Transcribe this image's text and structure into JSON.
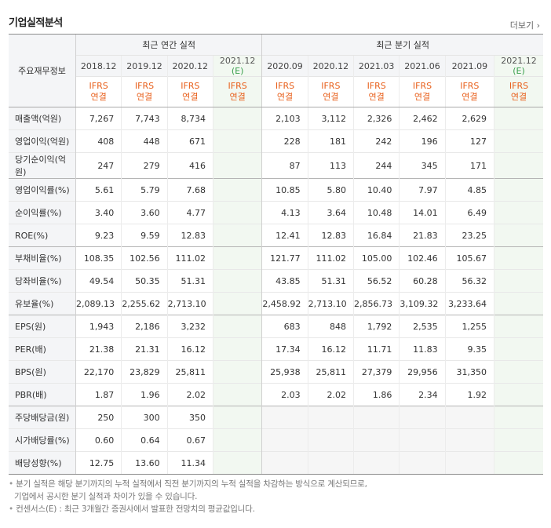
{
  "section_title": "기업실적분석",
  "more_link": "더보기",
  "more_arrow": "›",
  "table": {
    "corner_label": "주요재무정보",
    "annual_group": "최근 연간 실적",
    "quarter_group": "최근 분기 실적",
    "annual_periods": [
      "2018.12",
      "2019.12",
      "2020.12",
      "2021.12"
    ],
    "annual_est_mark": "(E)",
    "quarter_periods": [
      "2020.09",
      "2020.12",
      "2021.03",
      "2021.06",
      "2021.09",
      "2021.12"
    ],
    "quarter_est_mark": "(E)",
    "standard_line1": "IFRS",
    "standard_line2": "연결",
    "rows": [
      {
        "label": "매출액(억원)",
        "annual": [
          "7,267",
          "7,743",
          "8,734",
          ""
        ],
        "quarter": [
          "2,103",
          "3,112",
          "2,326",
          "2,462",
          "2,629",
          ""
        ]
      },
      {
        "label": "영업이익(억원)",
        "annual": [
          "408",
          "448",
          "671",
          ""
        ],
        "quarter": [
          "228",
          "181",
          "242",
          "196",
          "127",
          ""
        ]
      },
      {
        "label": "당기순이익(억원)",
        "annual": [
          "247",
          "279",
          "416",
          ""
        ],
        "quarter": [
          "87",
          "113",
          "244",
          "345",
          "171",
          ""
        ]
      },
      {
        "label": "영업이익률(%)",
        "annual": [
          "5.61",
          "5.79",
          "7.68",
          ""
        ],
        "quarter": [
          "10.85",
          "5.80",
          "10.40",
          "7.97",
          "4.85",
          ""
        ]
      },
      {
        "label": "순이익률(%)",
        "annual": [
          "3.40",
          "3.60",
          "4.77",
          ""
        ],
        "quarter": [
          "4.13",
          "3.64",
          "10.48",
          "14.01",
          "6.49",
          ""
        ]
      },
      {
        "label": "ROE(%)",
        "annual": [
          "9.23",
          "9.59",
          "12.83",
          ""
        ],
        "quarter": [
          "12.41",
          "12.83",
          "16.84",
          "21.83",
          "23.25",
          ""
        ]
      },
      {
        "label": "부채비율(%)",
        "annual": [
          "108.35",
          "102.56",
          "111.02",
          ""
        ],
        "quarter": [
          "121.77",
          "111.02",
          "105.00",
          "102.46",
          "105.67",
          ""
        ]
      },
      {
        "label": "당좌비율(%)",
        "annual": [
          "49.54",
          "50.35",
          "51.31",
          ""
        ],
        "quarter": [
          "43.85",
          "51.31",
          "56.52",
          "60.28",
          "56.32",
          ""
        ]
      },
      {
        "label": "유보율(%)",
        "annual": [
          "2,089.13",
          "2,255.62",
          "2,713.10",
          ""
        ],
        "quarter": [
          "2,458.92",
          "2,713.10",
          "2,856.73",
          "3,109.32",
          "3,233.64",
          ""
        ]
      },
      {
        "label": "EPS(원)",
        "annual": [
          "1,943",
          "2,186",
          "3,232",
          ""
        ],
        "quarter": [
          "683",
          "848",
          "1,792",
          "2,535",
          "1,255",
          ""
        ]
      },
      {
        "label": "PER(배)",
        "annual": [
          "21.38",
          "21.31",
          "16.12",
          ""
        ],
        "quarter": [
          "17.34",
          "16.12",
          "11.71",
          "11.83",
          "9.35",
          ""
        ]
      },
      {
        "label": "BPS(원)",
        "annual": [
          "22,170",
          "23,829",
          "25,811",
          ""
        ],
        "quarter": [
          "25,938",
          "25,811",
          "27,379",
          "29,956",
          "31,350",
          ""
        ]
      },
      {
        "label": "PBR(배)",
        "annual": [
          "1.87",
          "1.96",
          "2.02",
          ""
        ],
        "quarter": [
          "2.03",
          "2.02",
          "1.86",
          "2.34",
          "1.92",
          ""
        ]
      },
      {
        "label": "주당배당금(원)",
        "annual": [
          "250",
          "300",
          "350",
          ""
        ],
        "quarter": [
          "",
          "",
          "",
          "",
          "",
          ""
        ]
      },
      {
        "label": "시가배당률(%)",
        "annual": [
          "0.60",
          "0.64",
          "0.67",
          ""
        ],
        "quarter": [
          "",
          "",
          "",
          "",
          "",
          ""
        ]
      },
      {
        "label": "배당성향(%)",
        "annual": [
          "12.75",
          "13.60",
          "11.34",
          ""
        ],
        "quarter": [
          "",
          "",
          "",
          "",
          "",
          ""
        ]
      }
    ]
  },
  "notes": {
    "bullet": "•",
    "line1": "분기 실적은 해당 분기까지의 누적 실적에서 직전 분기까지의 누적 실적을 차감하는 방식으로 계산되므로,",
    "line2": "기업에서 공시한 분기 실적과 차이가 있을 수 있습니다.",
    "line3": "컨센서스(E) : 최근 3개월간 증권사에서 발표한 전망치의 평균값입니다."
  }
}
